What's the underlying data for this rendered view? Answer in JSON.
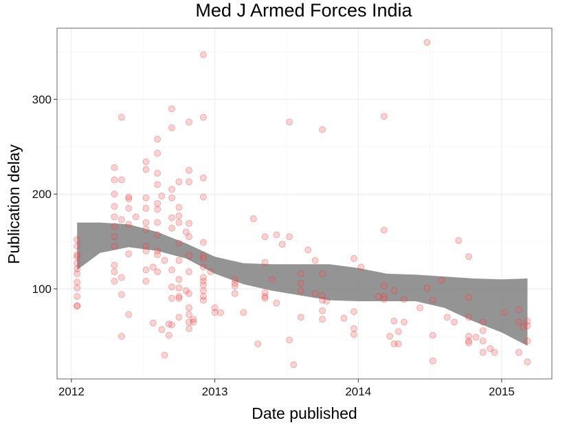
{
  "chart_data": {
    "type": "scatter",
    "title": "Med J Armed Forces India",
    "xlabel": "Date published",
    "ylabel": "Publication delay",
    "xlim": [
      2011.9,
      2015.35
    ],
    "ylim": [
      5,
      375
    ],
    "x_ticks": [
      2012,
      2013,
      2014,
      2015
    ],
    "x_tick_labels": [
      "2012",
      "2013",
      "2014",
      "2015"
    ],
    "y_ticks": [
      100,
      200,
      300
    ],
    "y_tick_labels": [
      "100",
      "200",
      "300"
    ],
    "grid": true,
    "colors": {
      "points": "#f06060",
      "ribbon": "#888888"
    },
    "points": [
      [
        2012.04,
        82
      ],
      [
        2012.04,
        82
      ],
      [
        2012.04,
        92
      ],
      [
        2012.04,
        101
      ],
      [
        2012.04,
        107
      ],
      [
        2012.04,
        116
      ],
      [
        2012.04,
        121
      ],
      [
        2012.04,
        127
      ],
      [
        2012.04,
        134
      ],
      [
        2012.04,
        136
      ],
      [
        2012.04,
        145
      ],
      [
        2012.04,
        152
      ],
      [
        2012.3,
        228
      ],
      [
        2012.3,
        215
      ],
      [
        2012.3,
        200
      ],
      [
        2012.3,
        187
      ],
      [
        2012.3,
        176
      ],
      [
        2012.3,
        166
      ],
      [
        2012.3,
        155
      ],
      [
        2012.3,
        145
      ],
      [
        2012.3,
        125
      ],
      [
        2012.3,
        118
      ],
      [
        2012.3,
        108
      ],
      [
        2012.35,
        281
      ],
      [
        2012.35,
        215
      ],
      [
        2012.35,
        173
      ],
      [
        2012.35,
        112
      ],
      [
        2012.35,
        94
      ],
      [
        2012.35,
        50
      ],
      [
        2012.4,
        197
      ],
      [
        2012.4,
        195
      ],
      [
        2012.4,
        185
      ],
      [
        2012.4,
        168
      ],
      [
        2012.4,
        137
      ],
      [
        2012.4,
        73
      ],
      [
        2012.45,
        176
      ],
      [
        2012.52,
        234
      ],
      [
        2012.52,
        226
      ],
      [
        2012.52,
        196
      ],
      [
        2012.52,
        185
      ],
      [
        2012.52,
        170
      ],
      [
        2012.52,
        163
      ],
      [
        2012.52,
        145
      ],
      [
        2012.52,
        140
      ],
      [
        2012.52,
        120
      ],
      [
        2012.52,
        108
      ],
      [
        2012.57,
        123
      ],
      [
        2012.57,
        64
      ],
      [
        2012.6,
        258
      ],
      [
        2012.6,
        243
      ],
      [
        2012.6,
        222
      ],
      [
        2012.6,
        210
      ],
      [
        2012.6,
        190
      ],
      [
        2012.6,
        184
      ],
      [
        2012.6,
        170
      ],
      [
        2012.6,
        157
      ],
      [
        2012.6,
        140
      ],
      [
        2012.6,
        136
      ],
      [
        2012.6,
        118
      ],
      [
        2012.63,
        198
      ],
      [
        2012.63,
        57
      ],
      [
        2012.65,
        130
      ],
      [
        2012.65,
        30
      ],
      [
        2012.68,
        63
      ],
      [
        2012.68,
        51
      ],
      [
        2012.7,
        290
      ],
      [
        2012.7,
        270
      ],
      [
        2012.7,
        205
      ],
      [
        2012.7,
        196
      ],
      [
        2012.7,
        175
      ],
      [
        2012.7,
        164
      ],
      [
        2012.7,
        120
      ],
      [
        2012.7,
        102
      ],
      [
        2012.7,
        90
      ],
      [
        2012.7,
        62
      ],
      [
        2012.75,
        213
      ],
      [
        2012.75,
        186
      ],
      [
        2012.75,
        177
      ],
      [
        2012.75,
        170
      ],
      [
        2012.75,
        148
      ],
      [
        2012.75,
        130
      ],
      [
        2012.75,
        110
      ],
      [
        2012.75,
        101
      ],
      [
        2012.75,
        92
      ],
      [
        2012.75,
        90
      ],
      [
        2012.75,
        70
      ],
      [
        2012.8,
        160
      ],
      [
        2012.8,
        98
      ],
      [
        2012.82,
        276
      ],
      [
        2012.82,
        225
      ],
      [
        2012.82,
        213
      ],
      [
        2012.82,
        169
      ],
      [
        2012.82,
        155
      ],
      [
        2012.82,
        135
      ],
      [
        2012.82,
        118
      ],
      [
        2012.82,
        95
      ],
      [
        2012.82,
        80
      ],
      [
        2012.82,
        73
      ],
      [
        2012.82,
        65
      ],
      [
        2012.82,
        58
      ],
      [
        2012.85,
        65
      ],
      [
        2012.85,
        68
      ],
      [
        2012.92,
        347
      ],
      [
        2012.92,
        281
      ],
      [
        2012.92,
        217
      ],
      [
        2012.92,
        197
      ],
      [
        2012.92,
        149
      ],
      [
        2012.92,
        135
      ],
      [
        2012.92,
        132
      ],
      [
        2012.92,
        123
      ],
      [
        2012.92,
        112
      ],
      [
        2012.92,
        108
      ],
      [
        2012.92,
        104
      ],
      [
        2012.92,
        98
      ],
      [
        2012.92,
        92
      ],
      [
        2012.92,
        88
      ],
      [
        2012.97,
        118
      ],
      [
        2013.0,
        80
      ],
      [
        2013.0,
        75
      ],
      [
        2013.04,
        75
      ],
      [
        2013.14,
        110
      ],
      [
        2013.14,
        106
      ],
      [
        2013.14,
        103
      ],
      [
        2013.14,
        95
      ],
      [
        2013.2,
        75
      ],
      [
        2013.27,
        174
      ],
      [
        2013.3,
        42
      ],
      [
        2013.35,
        155
      ],
      [
        2013.35,
        128
      ],
      [
        2013.35,
        96
      ],
      [
        2013.35,
        92
      ],
      [
        2013.35,
        90
      ],
      [
        2013.4,
        110
      ],
      [
        2013.43,
        157
      ],
      [
        2013.43,
        85
      ],
      [
        2013.47,
        147
      ],
      [
        2013.52,
        276
      ],
      [
        2013.52,
        155
      ],
      [
        2013.52,
        46
      ],
      [
        2013.55,
        20
      ],
      [
        2013.6,
        116
      ],
      [
        2013.6,
        106
      ],
      [
        2013.6,
        98
      ],
      [
        2013.6,
        70
      ],
      [
        2013.65,
        141
      ],
      [
        2013.7,
        130
      ],
      [
        2013.7,
        95
      ],
      [
        2013.75,
        268
      ],
      [
        2013.75,
        116
      ],
      [
        2013.75,
        93
      ],
      [
        2013.75,
        88
      ],
      [
        2013.75,
        77
      ],
      [
        2013.75,
        68
      ],
      [
        2013.78,
        87
      ],
      [
        2013.9,
        69
      ],
      [
        2013.97,
        132
      ],
      [
        2013.97,
        76
      ],
      [
        2013.97,
        58
      ],
      [
        2013.97,
        52
      ],
      [
        2014.02,
        123
      ],
      [
        2014.14,
        92
      ],
      [
        2014.18,
        282
      ],
      [
        2014.18,
        162
      ],
      [
        2014.18,
        103
      ],
      [
        2014.18,
        92
      ],
      [
        2014.18,
        89
      ],
      [
        2014.22,
        50
      ],
      [
        2014.25,
        98
      ],
      [
        2014.25,
        66
      ],
      [
        2014.25,
        42
      ],
      [
        2014.28,
        55
      ],
      [
        2014.28,
        42
      ],
      [
        2014.32,
        89
      ],
      [
        2014.32,
        65
      ],
      [
        2014.43,
        80
      ],
      [
        2014.48,
        360
      ],
      [
        2014.48,
        101
      ],
      [
        2014.52,
        88
      ],
      [
        2014.52,
        51
      ],
      [
        2014.52,
        24
      ],
      [
        2014.58,
        109
      ],
      [
        2014.62,
        70
      ],
      [
        2014.67,
        65
      ],
      [
        2014.7,
        151
      ],
      [
        2014.77,
        134
      ],
      [
        2014.77,
        91
      ],
      [
        2014.77,
        70
      ],
      [
        2014.77,
        50
      ],
      [
        2014.77,
        45
      ],
      [
        2014.77,
        43
      ],
      [
        2014.82,
        49
      ],
      [
        2014.87,
        65
      ],
      [
        2014.87,
        56
      ],
      [
        2014.87,
        45
      ],
      [
        2014.87,
        33
      ],
      [
        2014.92,
        37
      ],
      [
        2014.95,
        33
      ],
      [
        2015.02,
        75
      ],
      [
        2015.12,
        78
      ],
      [
        2015.12,
        65
      ],
      [
        2015.12,
        33
      ],
      [
        2015.15,
        60
      ],
      [
        2015.18,
        66
      ],
      [
        2015.18,
        61
      ],
      [
        2015.18,
        45
      ],
      [
        2015.18,
        23
      ]
    ],
    "smooth_band": {
      "x": [
        2012.04,
        2012.2,
        2012.4,
        2012.6,
        2012.8,
        2013.0,
        2013.2,
        2013.4,
        2013.6,
        2013.8,
        2014.0,
        2014.2,
        2014.4,
        2014.6,
        2014.8,
        2015.0,
        2015.18
      ],
      "lower": [
        120,
        138,
        144,
        140,
        132,
        116,
        105,
        98,
        93,
        88,
        87,
        87,
        87,
        80,
        66,
        54,
        40
      ],
      "upper": [
        170,
        170,
        168,
        160,
        148,
        134,
        127,
        126,
        126,
        126,
        122,
        116,
        115,
        113,
        111,
        110,
        111
      ]
    }
  }
}
